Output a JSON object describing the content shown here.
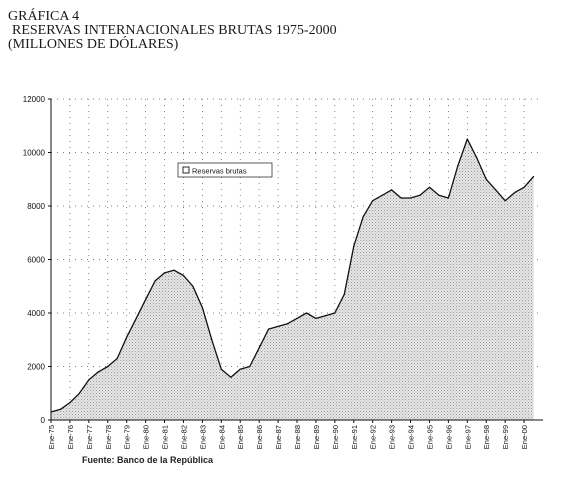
{
  "header": {
    "figure_number": "GRÁFICA 4",
    "title": "RESERVAS INTERNACIONALES BRUTAS 1975-2000",
    "units": "(MILLONES DE DÓLARES)"
  },
  "source": "Fuente: Banco de la República",
  "chart_data": {
    "type": "area",
    "title": "RESERVAS INTERNACIONALES BRUTAS 1975-2000",
    "subtitle": "(MILLONES DE DÓLARES)",
    "xlabel": "",
    "ylabel": "",
    "ylim": [
      0,
      12000
    ],
    "yticks": [
      0,
      2000,
      4000,
      6000,
      8000,
      10000,
      12000
    ],
    "ytick_labels": [
      "0",
      "2000",
      "4000",
      "6000",
      "8000",
      "10000",
      "12000"
    ],
    "xlim": [
      1975.0,
      2001.0
    ],
    "x_tick_labels": [
      "Ene-75",
      "Ene-76",
      "Ene-77",
      "Ene-78",
      "Ene-79",
      "Ene-80",
      "Ene-81",
      "Ene-82",
      "Ene-83",
      "Ene-84",
      "Ene-85",
      "Ene-86",
      "Ene-87",
      "Ene-88",
      "Ene-89",
      "Ene-90",
      "Ene-91",
      "Ene-92",
      "Ene-93",
      "Ene-94",
      "Ene-95",
      "Ene-96",
      "Ene-97",
      "Ene-98",
      "Ene-99",
      "Ene-00"
    ],
    "grid": "dotted",
    "legend_position": "upper-left",
    "series": [
      {
        "name": "Reservas brutas",
        "x": [
          1975.0,
          1975.5,
          1976.0,
          1976.5,
          1977.0,
          1977.5,
          1978.0,
          1978.5,
          1979.0,
          1979.5,
          1980.0,
          1980.5,
          1981.0,
          1981.5,
          1982.0,
          1982.5,
          1983.0,
          1983.5,
          1984.0,
          1984.5,
          1985.0,
          1985.5,
          1986.0,
          1986.5,
          1987.0,
          1987.5,
          1988.0,
          1988.5,
          1989.0,
          1989.5,
          1990.0,
          1990.5,
          1991.0,
          1991.5,
          1992.0,
          1992.5,
          1993.0,
          1993.5,
          1994.0,
          1994.5,
          1995.0,
          1995.5,
          1996.0,
          1996.5,
          1997.0,
          1997.5,
          1998.0,
          1998.5,
          1999.0,
          1999.5,
          2000.0,
          2000.5
        ],
        "values": [
          300,
          400,
          650,
          1000,
          1500,
          1800,
          2000,
          2300,
          3100,
          3800,
          4500,
          5200,
          5500,
          5600,
          5400,
          5000,
          4200,
          3000,
          1900,
          1600,
          1900,
          2000,
          2700,
          3400,
          3500,
          3600,
          3800,
          4000,
          3800,
          3900,
          4000,
          4700,
          6500,
          7600,
          8200,
          8400,
          8600,
          8300,
          8300,
          8400,
          8700,
          8400,
          8300,
          9500,
          10500,
          9800,
          9000,
          8600,
          8200,
          8500,
          8700,
          9100
        ]
      }
    ]
  }
}
